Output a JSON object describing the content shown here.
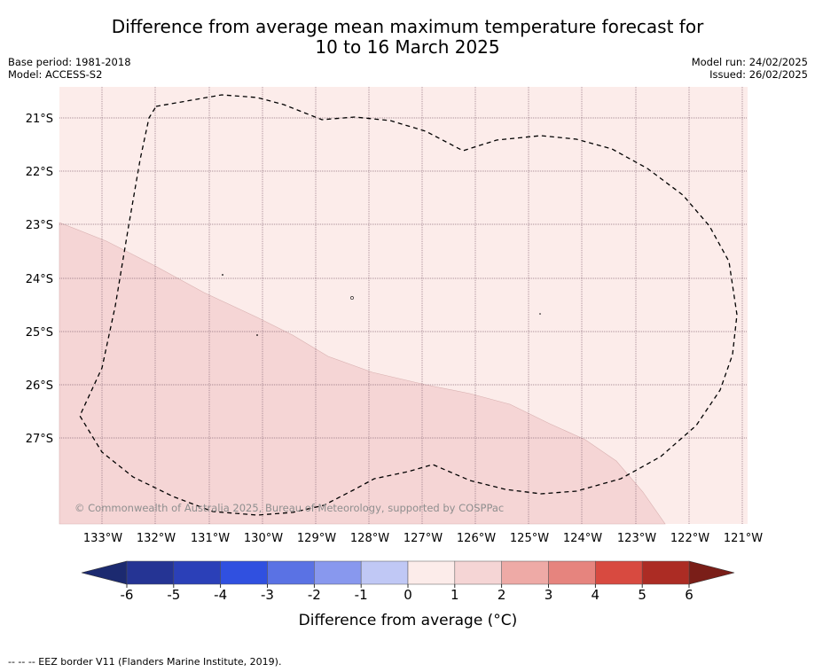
{
  "title_line1": "Difference from average mean maximum temperature forecast for",
  "title_line2": "10 to 16 March 2025",
  "base_period": "Base period: 1981-2018",
  "model": "Model: ACCESS-S2",
  "model_run": "Model run: 24/02/2025",
  "issued": "Issued: 26/02/2025",
  "copyright": "© Commonwealth of Australia 2025, Bureau of Meteorology, supported by COSPPac",
  "lat_labels": [
    "21°S",
    "22°S",
    "23°S",
    "24°S",
    "25°S",
    "26°S",
    "27°S"
  ],
  "lon_labels": [
    "133°W",
    "132°W",
    "131°W",
    "130°W",
    "129°W",
    "128°W",
    "127°W",
    "126°W",
    "125°W",
    "124°W",
    "123°W",
    "122°W",
    "121°W"
  ],
  "colorbar": {
    "ticks": [
      "-6",
      "-5",
      "-4",
      "-3",
      "-2",
      "-1",
      "0",
      "1",
      "2",
      "3",
      "4",
      "5",
      "6"
    ],
    "colors": [
      "#253494",
      "#2b40b8",
      "#3050e0",
      "#5a72e4",
      "#8898ee",
      "#c0c8f5",
      "#e8ebfb",
      "#fcecea",
      "#f5d5d5",
      "#eeaaa6",
      "#e6847e",
      "#d84a40",
      "#ac2c24"
    ],
    "under_color": "#1c2a70",
    "over_color": "#7a1e18",
    "label": "Difference from average (°C)"
  },
  "map_colors": {
    "band_0_1": "#fcecea",
    "band_1_2": "#f5d5d5"
  },
  "legend_footer": "-- -- -- EEZ border V11 (Flanders Marine Institute, 2019)."
}
